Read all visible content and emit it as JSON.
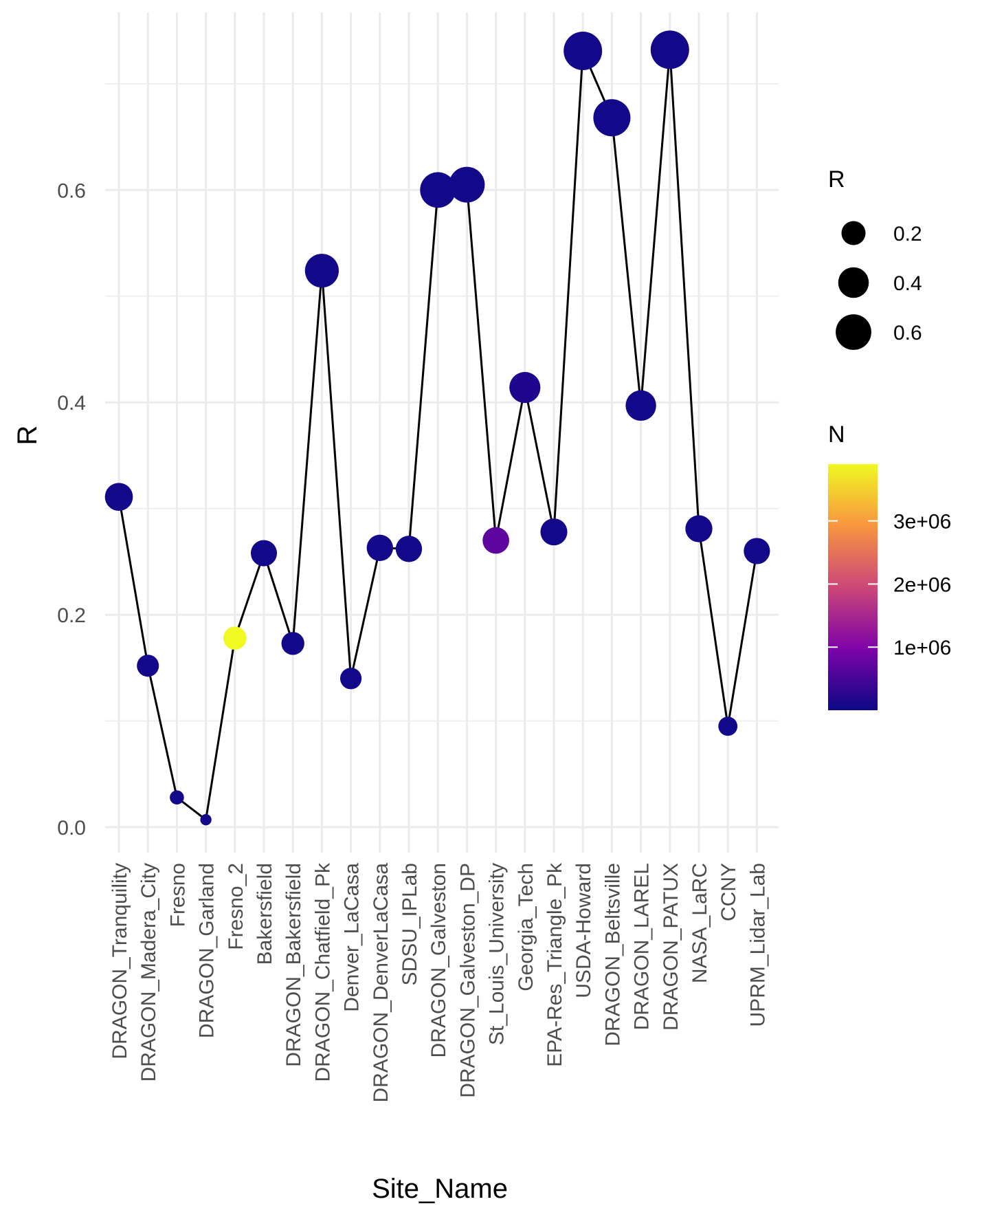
{
  "chart_data": {
    "type": "scatter",
    "title": "",
    "xlabel": "Site_Name",
    "ylabel": "R",
    "ylim": [
      -0.03,
      0.76
    ],
    "yticks": [
      "0.0",
      "0.2",
      "0.4",
      "0.6"
    ],
    "grid": true,
    "line_color": "#000000",
    "categories": [
      "DRAGON_Tranquility",
      "DRAGON_Madera_City",
      "Fresno",
      "DRAGON_Garland",
      "Fresno_2",
      "Bakersfield",
      "DRAGON_Bakersfield",
      "DRAGON_Chatfield_Pk",
      "Denver_LaCasa",
      "DRAGON_DenverLaCasa",
      "SDSU_IPLab",
      "DRAGON_Galveston",
      "DRAGON_Galveston_DP",
      "St_Louis_University",
      "Georgia_Tech",
      "EPA-Res_Triangle_Pk",
      "USDA-Howard",
      "DRAGON_Beltsville",
      "DRAGON_LAREL",
      "DRAGON_PATUX",
      "NASA_LaRC",
      "CCNY",
      "UPRM_Lidar_Lab"
    ],
    "series": [
      {
        "values": [
          0.311,
          0.152,
          0.028,
          0.007,
          0.178,
          0.258,
          0.173,
          0.524,
          0.14,
          0.263,
          0.262,
          0.6,
          0.605,
          0.27,
          0.414,
          0.278,
          0.731,
          0.668,
          0.397,
          0.732,
          0.281,
          0.095,
          0.26
        ],
        "n_values": [
          50000,
          50000,
          50000,
          50000,
          3900000,
          50000,
          50000,
          50000,
          50000,
          50000,
          50000,
          50000,
          50000,
          700000,
          150000,
          50000,
          50000,
          50000,
          50000,
          50000,
          50000,
          50000,
          50000
        ]
      }
    ],
    "legend_size": {
      "title": "R",
      "entries": [
        {
          "label": "0.2",
          "value": 0.2
        },
        {
          "label": "0.4",
          "value": 0.4
        },
        {
          "label": "0.6",
          "value": 0.6
        }
      ]
    },
    "legend_color": {
      "title": "N",
      "colors": [
        "#0d0887",
        "#7e03a8",
        "#cc4778",
        "#f89540",
        "#f0f921"
      ],
      "range": [
        0,
        3900000
      ],
      "ticks": [
        {
          "label": "1e+06",
          "value": 1000000
        },
        {
          "label": "2e+06",
          "value": 2000000
        },
        {
          "label": "3e+06",
          "value": 3000000
        }
      ]
    },
    "legend_position": "right"
  }
}
